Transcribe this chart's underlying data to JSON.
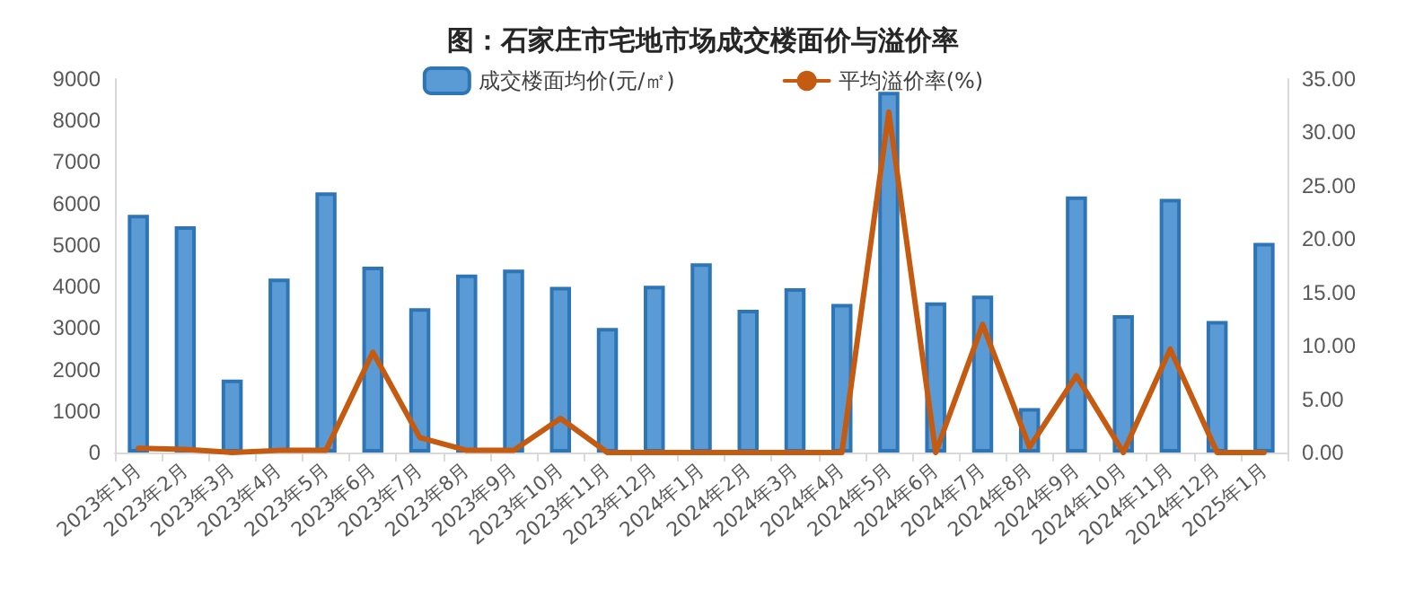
{
  "chart_data": {
    "type": "bar",
    "title": "图：石家庄市宅地市场成交楼面价与溢价率",
    "categories": [
      "2023年1月",
      "2023年2月",
      "2023年3月",
      "2023年4月",
      "2023年5月",
      "2023年6月",
      "2023年7月",
      "2023年8月",
      "2023年9月",
      "2023年10月",
      "2023年11月",
      "2023年12月",
      "2024年1月",
      "2024年2月",
      "2024年3月",
      "2024年4月",
      "2024年5月",
      "2024年6月",
      "2024年7月",
      "2024年8月",
      "2024年9月",
      "2024年10月",
      "2024年11月",
      "2024年12月",
      "2025年1月"
    ],
    "series": [
      {
        "name": "成交楼面均价(元/㎡)",
        "color": "#5b9bd5",
        "values": [
          5730,
          5450,
          1760,
          4190,
          6270,
          4480,
          3480,
          4290,
          4410,
          3990,
          3000,
          4020,
          4560,
          3440,
          3960,
          3580,
          8690,
          3620,
          3780,
          1070,
          6170,
          3310,
          6110,
          3170,
          5050
        ]
      },
      {
        "name": "平均溢价率(%)",
        "type": "line",
        "axis": "y2",
        "color": "#c55a11",
        "values": [
          0.4,
          0.3,
          0,
          0.2,
          0.2,
          9.4,
          1.4,
          0.2,
          0.2,
          3.2,
          0,
          0,
          0,
          0,
          0,
          0,
          31.9,
          0,
          12,
          0.5,
          7.2,
          0,
          9.7,
          0,
          0
        ]
      }
    ],
    "ylim": [
      0,
      9000
    ],
    "yticks": [
      0,
      1000,
      2000,
      3000,
      4000,
      5000,
      6000,
      7000,
      8000,
      9000
    ],
    "y2lim": [
      0,
      35
    ],
    "y2ticks": [
      {
        "value": 0,
        "label": "0.00"
      },
      {
        "value": 5,
        "label": "5.00"
      },
      {
        "value": 10,
        "label": "10.00"
      },
      {
        "value": 15,
        "label": "15.00"
      },
      {
        "value": 20,
        "label": "20.00"
      },
      {
        "value": 25,
        "label": "25.00"
      },
      {
        "value": 30,
        "label": "30.00"
      },
      {
        "value": 35,
        "label": "35.00"
      }
    ],
    "legend": "top",
    "grid": false,
    "marker": "none",
    "line_style": "solid"
  }
}
